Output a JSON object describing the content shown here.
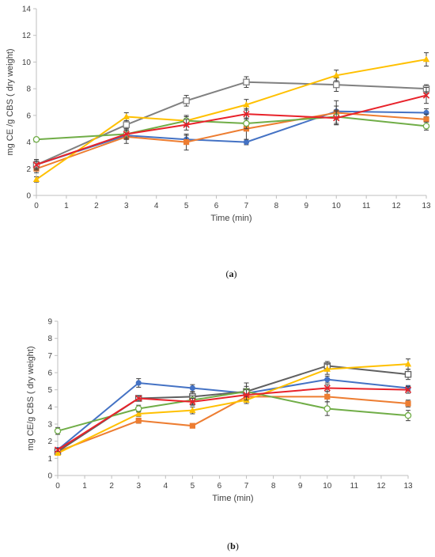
{
  "chart_data": [
    {
      "type": "line",
      "panel_label": "a",
      "title": "",
      "xlabel": "Time (min)",
      "ylabel": "mg CE /g CBS ( dry weight)",
      "xlim": [
        0,
        13
      ],
      "ylim": [
        0,
        14
      ],
      "xticks": [
        0,
        1,
        2,
        3,
        4,
        5,
        6,
        7,
        8,
        9,
        10,
        11,
        12,
        13
      ],
      "yticks": [
        0,
        2,
        4,
        6,
        8,
        10,
        12,
        14
      ],
      "grid": false,
      "legend": "none",
      "x": [
        0,
        3,
        5,
        7,
        10,
        13
      ],
      "series": [
        {
          "color": "#4472c4",
          "marker": "circle-filled",
          "values": [
            2.3,
            4.5,
            4.2,
            4.0,
            6.3,
            6.2
          ],
          "errors": [
            0.4,
            0.3,
            0.3,
            0.2,
            0.4,
            0.3
          ]
        },
        {
          "color": "#ed7d31",
          "marker": "square-filled",
          "values": [
            2.0,
            4.4,
            4.0,
            5.0,
            6.2,
            5.7
          ],
          "errors": [
            0.3,
            0.5,
            0.6,
            0.8,
            0.9,
            0.4
          ]
        },
        {
          "color": "#808080",
          "marker": "square-open",
          "values": [
            2.3,
            5.3,
            7.1,
            8.5,
            8.3,
            8.0
          ],
          "errors": [
            0.4,
            0.3,
            0.4,
            0.4,
            0.5,
            0.3
          ]
        },
        {
          "color": "#ffc000",
          "marker": "triangle-filled",
          "values": [
            1.2,
            5.9,
            5.6,
            6.8,
            9.0,
            10.2
          ],
          "errors": [
            0.2,
            0.3,
            0.3,
            0.4,
            0.4,
            0.5
          ]
        },
        {
          "color": "#70ad47",
          "marker": "circle-open",
          "values": [
            4.2,
            4.6,
            5.6,
            5.4,
            5.9,
            5.2
          ],
          "errors": [
            0.1,
            0.4,
            0.4,
            0.4,
            0.5,
            0.3
          ]
        },
        {
          "color": "#e8222a",
          "marker": "x",
          "values": [
            2.3,
            4.6,
            5.3,
            6.1,
            5.8,
            7.5
          ],
          "errors": [
            0.3,
            0.3,
            0.4,
            0.4,
            0.5,
            0.6
          ]
        }
      ]
    },
    {
      "type": "line",
      "panel_label": "b",
      "title": "",
      "xlabel": "Time (min)",
      "ylabel": "mg CE/g CBS ( dry weight)",
      "xlim": [
        0,
        13
      ],
      "ylim": [
        0,
        9
      ],
      "xticks": [
        0,
        1,
        2,
        3,
        4,
        5,
        6,
        7,
        8,
        9,
        10,
        11,
        12,
        13
      ],
      "yticks": [
        0,
        1,
        2,
        3,
        4,
        5,
        6,
        7,
        8,
        9
      ],
      "grid": false,
      "legend": "none",
      "x": [
        0,
        3,
        5,
        7,
        10,
        13
      ],
      "series": [
        {
          "color": "#4472c4",
          "marker": "circle-filled",
          "values": [
            1.5,
            5.4,
            5.1,
            4.8,
            5.6,
            5.1
          ],
          "errors": [
            0.1,
            0.25,
            0.2,
            0.2,
            0.2,
            0.15
          ]
        },
        {
          "color": "#ed7d31",
          "marker": "square-filled",
          "values": [
            1.4,
            3.2,
            2.9,
            4.6,
            4.6,
            4.2
          ],
          "errors": [
            0.1,
            0.15,
            0.1,
            0.2,
            0.3,
            0.2
          ]
        },
        {
          "color": "#606060",
          "marker": "square-open",
          "values": [
            1.4,
            4.5,
            4.6,
            4.9,
            6.4,
            5.9
          ],
          "errors": [
            0.1,
            0.15,
            0.25,
            0.5,
            0.25,
            0.3
          ]
        },
        {
          "color": "#ffc000",
          "marker": "triangle-filled",
          "values": [
            1.3,
            3.6,
            3.8,
            4.4,
            6.2,
            6.5
          ],
          "errors": [
            0.1,
            0.15,
            0.2,
            0.2,
            0.3,
            0.3
          ]
        },
        {
          "color": "#70ad47",
          "marker": "circle-open",
          "values": [
            2.6,
            3.9,
            4.4,
            4.9,
            3.9,
            3.5
          ],
          "errors": [
            0.2,
            0.2,
            0.25,
            0.3,
            0.4,
            0.3
          ]
        },
        {
          "color": "#e8222a",
          "marker": "x",
          "values": [
            1.5,
            4.5,
            4.3,
            4.7,
            5.1,
            5.0
          ],
          "errors": [
            0.1,
            0.15,
            0.2,
            0.3,
            0.2,
            0.2
          ]
        }
      ]
    }
  ]
}
